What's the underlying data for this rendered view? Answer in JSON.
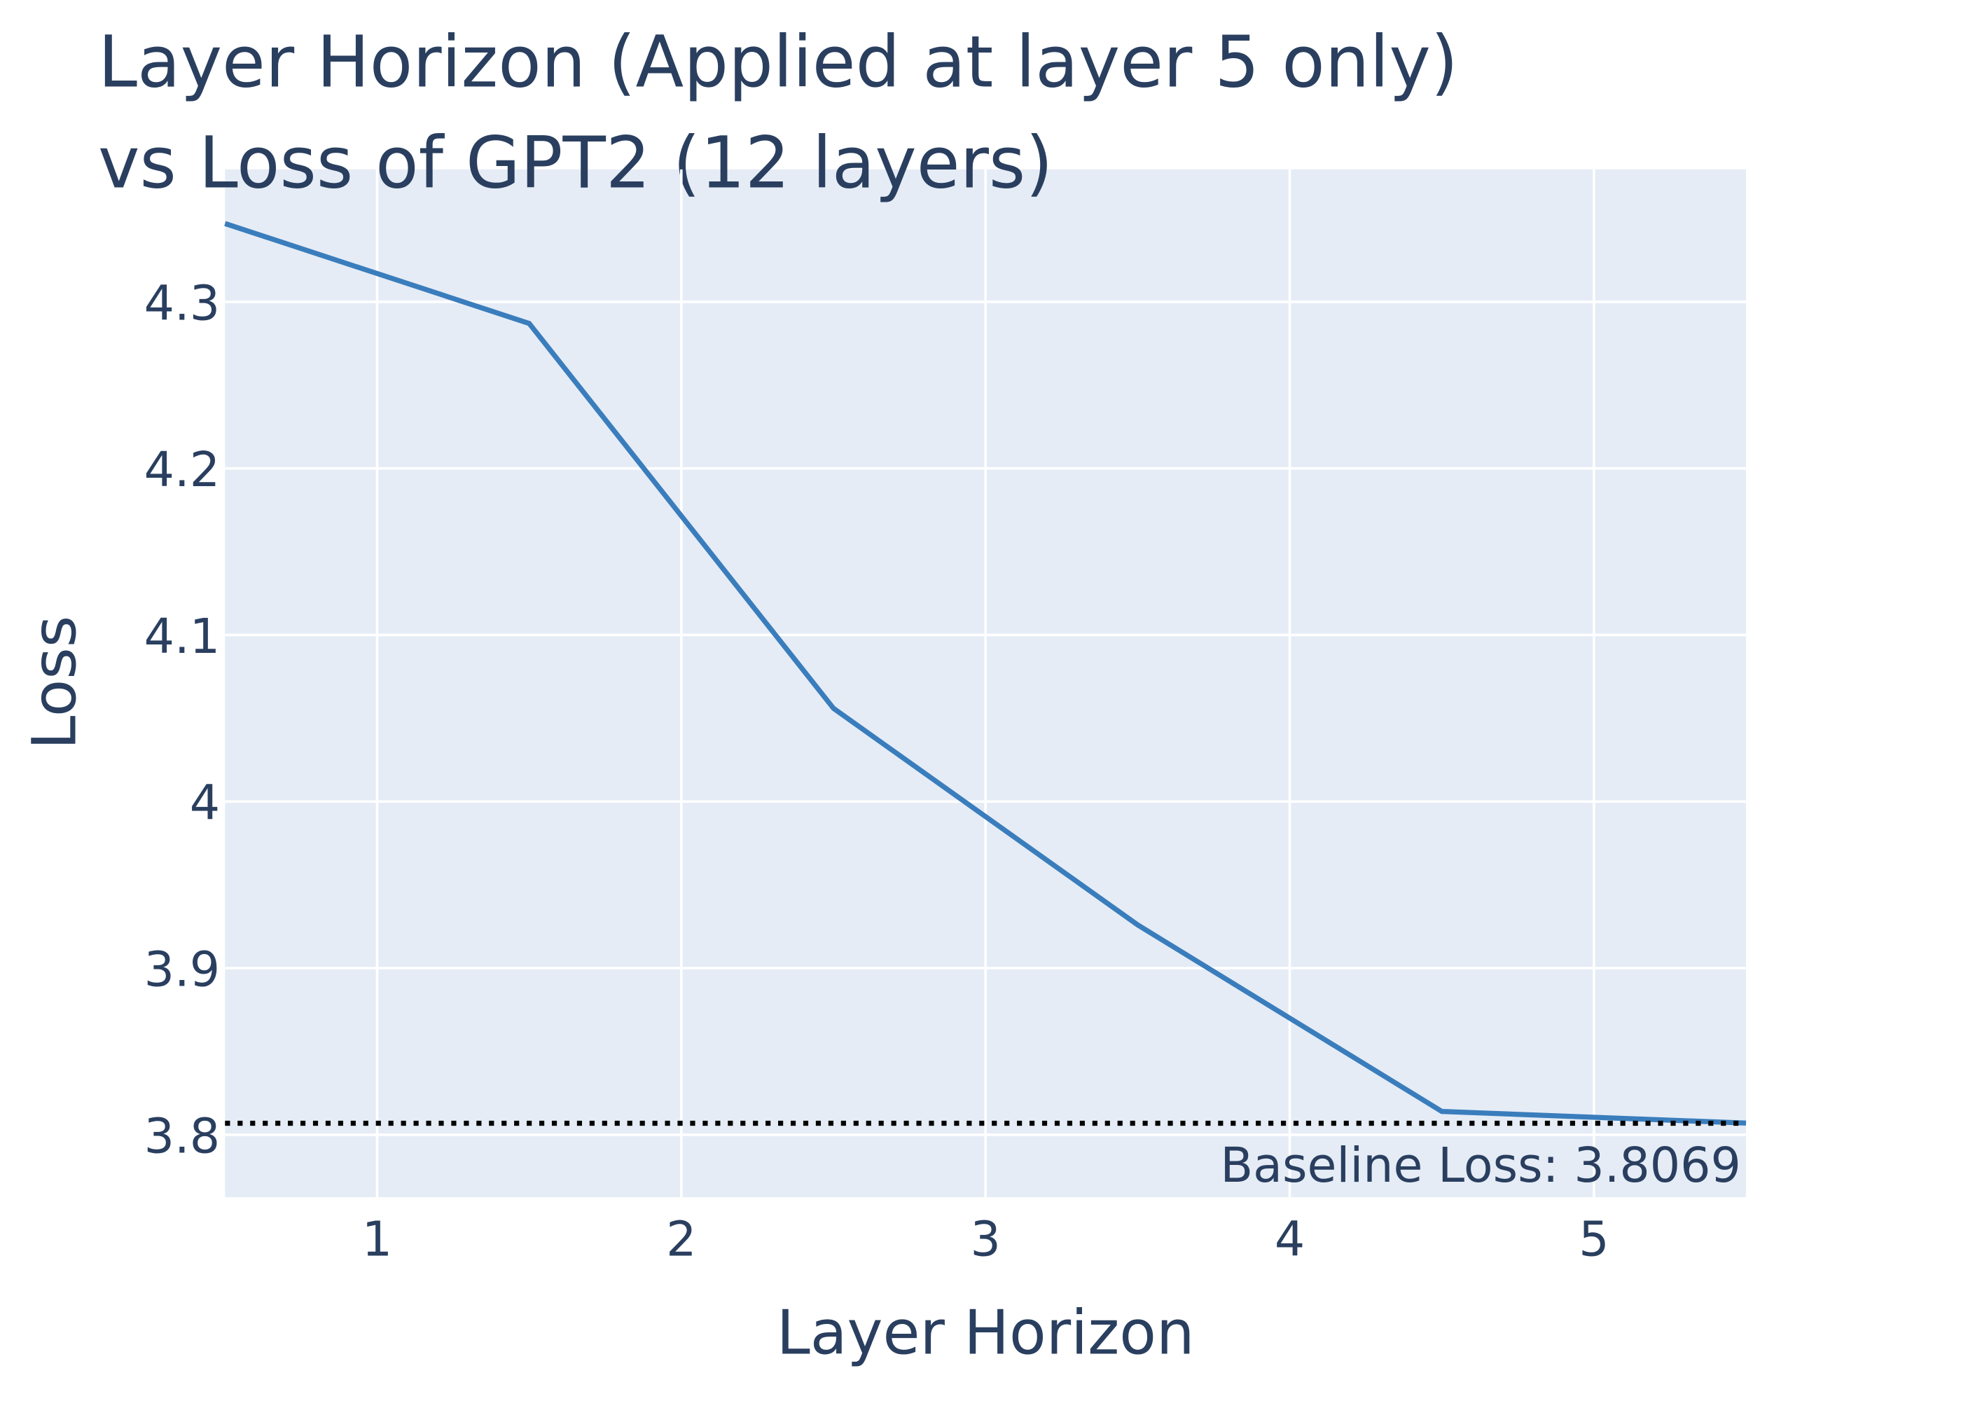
{
  "chart_data": {
    "type": "line",
    "title": [
      "Layer Horizon (Applied at layer 5 only)",
      "vs Loss of GPT2 (12 layers)"
    ],
    "x_label": "Layer Horizon",
    "y_label": "Loss",
    "x": [
      0.5,
      1.5,
      2.5,
      3.5,
      4.5,
      5.5
    ],
    "series": [
      {
        "color": "#3a7dbc",
        "values": [
          4.347,
          4.287,
          4.056,
          3.926,
          3.814,
          3.807
        ]
      }
    ],
    "xlim": [
      0.5,
      5.5
    ],
    "xticks": [
      1,
      2,
      3,
      4,
      5
    ],
    "ylim": [
      3.7625,
      4.3795
    ],
    "yticks": [
      3.8,
      3.9,
      4,
      4.1,
      4.2,
      4.3
    ],
    "grid": true,
    "baseline": {
      "value": 3.8069,
      "label": "Baseline Loss: 3.8069",
      "color": "#000000"
    }
  }
}
